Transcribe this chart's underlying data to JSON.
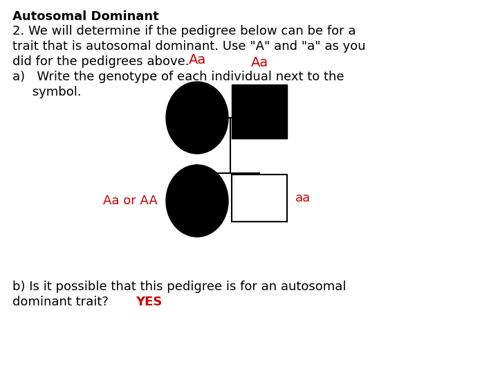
{
  "background_color": "#ffffff",
  "title_bold": "Autosomal Dominant",
  "line1": "2. We will determine if the pedigree below can be for a",
  "line2": "trait that is autosomal dominant. Use \"A\" and \"a\" as you",
  "line3": "did for the pedigrees above.",
  "line4": "a)   Write the genotype of each individual next to the",
  "line5": "     symbol.",
  "bottom_line1": "b) Is it possible that this pedigree is for an autosomal",
  "bottom_line2": "dominant trait?  ",
  "bottom_answer": "YES",
  "label_mother": "Aa",
  "label_father": "Aa",
  "label_daughter": "Aa or AA",
  "label_son": "aa",
  "red_color": "#cc0000",
  "black_color": "#000000",
  "fontsize_body": 13.0
}
